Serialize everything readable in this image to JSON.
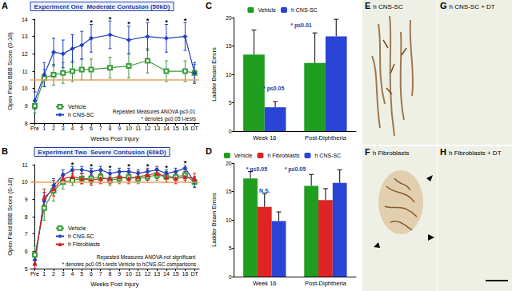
{
  "chart_data": [
    {
      "type": "line",
      "panel": "A",
      "title": "Experiment One  Moderate Contusion (50kD)",
      "x_label": "Weeks Post Injury",
      "y_label": "Open Field BBB Score (0-18)",
      "xlim": [
        -0.5,
        17.5
      ],
      "xticks": [
        {
          "value": 0,
          "label": "Pre"
        },
        1,
        2,
        3,
        4,
        5,
        6,
        7,
        8,
        9,
        10,
        11,
        12,
        13,
        14,
        15,
        16,
        {
          "value": 17,
          "label": "DT"
        }
      ],
      "ylim": [
        8,
        14
      ],
      "yticks": [
        8,
        9,
        10,
        11,
        12,
        13,
        14
      ],
      "grid": false,
      "legend": "bottom",
      "reference_line": {
        "value": 10.5,
        "color": "#f0a060"
      },
      "series": [
        {
          "name": "Vehicle",
          "color": "#3a9c3a",
          "marker": "open_square",
          "x": [
            0,
            1,
            2,
            3,
            4,
            5,
            6,
            8,
            10,
            12,
            14,
            16,
            17
          ],
          "values": [
            9.0,
            10.6,
            10.8,
            10.9,
            11.0,
            11.1,
            11.1,
            11.2,
            11.3,
            11.6,
            11.0,
            11.0,
            10.9
          ],
          "errors": [
            0.4,
            0.5,
            0.6,
            0.6,
            0.6,
            0.6,
            0.6,
            0.6,
            0.7,
            0.7,
            0.6,
            0.6,
            0.5
          ]
        },
        {
          "name": "h CNS-SC",
          "color": "#1f3fbf",
          "marker": "diamond",
          "x": [
            0,
            1,
            2,
            3,
            4,
            5,
            6,
            8,
            10,
            12,
            14,
            16,
            17
          ],
          "values": [
            9.3,
            10.8,
            12.1,
            12.0,
            12.3,
            12.5,
            12.9,
            13.1,
            12.8,
            13.0,
            12.9,
            13.0,
            10.9
          ],
          "errors": [
            0.5,
            0.7,
            0.8,
            0.8,
            0.8,
            0.8,
            0.8,
            0.8,
            0.8,
            0.8,
            0.8,
            0.8,
            0.6
          ]
        }
      ],
      "annotations": [
        {
          "x": 6,
          "y": 13.7,
          "text": "*"
        },
        {
          "x": 8,
          "y": 13.9,
          "text": "*"
        },
        {
          "x": 10,
          "y": 13.6,
          "text": "*"
        },
        {
          "x": 12,
          "y": 13.8,
          "text": "*"
        },
        {
          "x": 14,
          "y": 13.7,
          "text": "*"
        },
        {
          "x": 16,
          "y": 13.8,
          "text": "*"
        }
      ],
      "stat_text": [
        "Repeated Measures ANOVA p≤0.01",
        "* denotes p≤0.05 t-tests"
      ]
    },
    {
      "type": "line",
      "panel": "B",
      "title": "Experiment Two  Severe Contusion (60kD)",
      "x_label": "Weeks Post Injury",
      "y_label": "Open Field BBB Score (0-18)",
      "xlim": [
        -0.5,
        17.5
      ],
      "xticks": [
        {
          "value": 0,
          "label": "Pre"
        },
        1,
        2,
        3,
        4,
        5,
        6,
        7,
        8,
        9,
        10,
        11,
        12,
        13,
        14,
        15,
        16,
        {
          "value": 17,
          "label": "DT"
        }
      ],
      "ylim": [
        5,
        11
      ],
      "yticks": [
        5,
        6,
        7,
        8,
        9,
        10,
        11
      ],
      "grid": false,
      "legend": "bottom",
      "reference_line": {
        "value": 10,
        "color": "#f0a060"
      },
      "series": [
        {
          "name": "Vehicle",
          "color": "#3a9c3a",
          "marker": "open_square",
          "x": [
            0,
            1,
            2,
            3,
            4,
            5,
            6,
            7,
            8,
            9,
            10,
            11,
            12,
            13,
            14,
            15,
            16,
            17
          ],
          "values": [
            5.8,
            8.5,
            9.5,
            10.0,
            10.1,
            10.2,
            10.2,
            10.3,
            10.1,
            10.2,
            10.3,
            10.2,
            10.3,
            10.4,
            10.3,
            10.3,
            10.4,
            10.0
          ],
          "errors": [
            0.5,
            0.7,
            0.6,
            0.4,
            0.3,
            0.3,
            0.3,
            0.3,
            0.3,
            0.3,
            0.3,
            0.3,
            0.3,
            0.3,
            0.3,
            0.3,
            0.3,
            0.3
          ]
        },
        {
          "name": "h CNS-SC",
          "color": "#1f3fbf",
          "marker": "diamond",
          "x": [
            0,
            1,
            2,
            3,
            4,
            5,
            6,
            7,
            8,
            9,
            10,
            11,
            12,
            13,
            14,
            15,
            16,
            17
          ],
          "values": [
            5.5,
            8.9,
            9.8,
            10.4,
            10.7,
            10.7,
            10.6,
            10.7,
            10.5,
            10.6,
            10.6,
            10.5,
            10.6,
            10.7,
            10.5,
            10.6,
            10.8,
            10.0
          ],
          "errors": [
            0.5,
            0.5,
            0.4,
            0.3,
            0.2,
            0.2,
            0.2,
            0.2,
            0.2,
            0.2,
            0.2,
            0.2,
            0.2,
            0.2,
            0.2,
            0.2,
            0.2,
            0.3
          ]
        },
        {
          "name": "h Fibroblasts",
          "color": "#d42020",
          "marker": "triangle",
          "x": [
            0,
            1,
            2,
            3,
            4,
            5,
            6,
            7,
            8,
            9,
            10,
            11,
            12,
            13,
            14,
            15,
            16,
            17
          ],
          "values": [
            5.3,
            9.1,
            9.6,
            10.2,
            10.3,
            10.2,
            10.1,
            10.2,
            10.2,
            10.3,
            10.2,
            10.3,
            10.4,
            10.5,
            10.3,
            10.2,
            10.3,
            10.2
          ],
          "errors": [
            0.6,
            0.5,
            0.4,
            0.3,
            0.3,
            0.3,
            0.3,
            0.3,
            0.3,
            0.3,
            0.3,
            0.3,
            0.3,
            0.3,
            0.3,
            0.3,
            0.3,
            0.3
          ]
        }
      ],
      "annotations": [
        {
          "x": 4,
          "y": 10.9,
          "text": "*"
        },
        {
          "x": 6,
          "y": 10.8,
          "text": "*"
        },
        {
          "x": 8,
          "y": 10.7,
          "text": "*"
        },
        {
          "x": 10,
          "y": 10.8,
          "text": "*"
        },
        {
          "x": 12,
          "y": 10.8,
          "text": "*"
        },
        {
          "x": 14,
          "y": 10.7,
          "text": "*"
        },
        {
          "x": 16,
          "y": 11.0,
          "text": "*"
        }
      ],
      "stat_text": [
        "Repeated Measures ANOVA not significant",
        "* denotes p≤0.05 t-tests Vehicle to hCNS-SC comparisons"
      ]
    },
    {
      "type": "bar",
      "panel": "C",
      "y_label": "Ladder Beam Errors",
      "categories": [
        "Week 16",
        "Post-Diphtheria"
      ],
      "ylim": [
        0,
        20
      ],
      "yticks": [
        0,
        5,
        10,
        15,
        20
      ],
      "grid": false,
      "legend": "top",
      "series": [
        {
          "name": "Vehicle",
          "color": "#1f9e1f",
          "values": [
            13.5,
            12.0
          ],
          "errors": [
            4.3,
            5.3
          ]
        },
        {
          "name": "h CNS-SC",
          "color": "#2a44d8",
          "values": [
            4.2,
            16.7
          ],
          "errors": [
            1.0,
            3.0
          ]
        }
      ],
      "annotations": [
        {
          "x": 0.15,
          "y": 7.5,
          "text": "* p≤0.05"
        },
        {
          "x": 0.6,
          "y": 18.6,
          "text": "* p≤0.01"
        }
      ]
    },
    {
      "type": "bar",
      "panel": "D",
      "y_label": "Ladder Beam Errors",
      "categories": [
        "Week 16",
        "Post-Diphtheria"
      ],
      "ylim": [
        0,
        20
      ],
      "yticks": [
        0,
        5,
        10,
        15,
        20
      ],
      "grid": false,
      "legend": "top",
      "series": [
        {
          "name": "Vehicle",
          "color": "#1f9e1f",
          "values": [
            17.3,
            16.0
          ],
          "errors": [
            1.2,
            2.0
          ]
        },
        {
          "name": "h Fibroblasts",
          "color": "#e02424",
          "values": [
            12.3,
            13.5
          ],
          "errors": [
            2.3,
            2.0
          ]
        },
        {
          "name": "h CNS-SC",
          "color": "#2a44d8",
          "values": [
            9.8,
            16.5
          ],
          "errors": [
            1.6,
            2.3
          ]
        }
      ],
      "annotations": [
        {
          "x": -0.13,
          "y": 19.0,
          "text": "* p≤0.05"
        },
        {
          "x": 0.0,
          "y": 15.2,
          "text": "N.S."
        },
        {
          "x": 0.5,
          "y": 19.0,
          "text": "* p≤0.05"
        }
      ]
    }
  ],
  "image_panels": [
    {
      "panel": "E",
      "label": "h CNS-SC"
    },
    {
      "panel": "F",
      "label": "h Fibroblasts"
    },
    {
      "panel": "G",
      "label": "h CNS-SC + DT"
    },
    {
      "panel": "H",
      "label": "h Fibroblasts + DT"
    }
  ]
}
